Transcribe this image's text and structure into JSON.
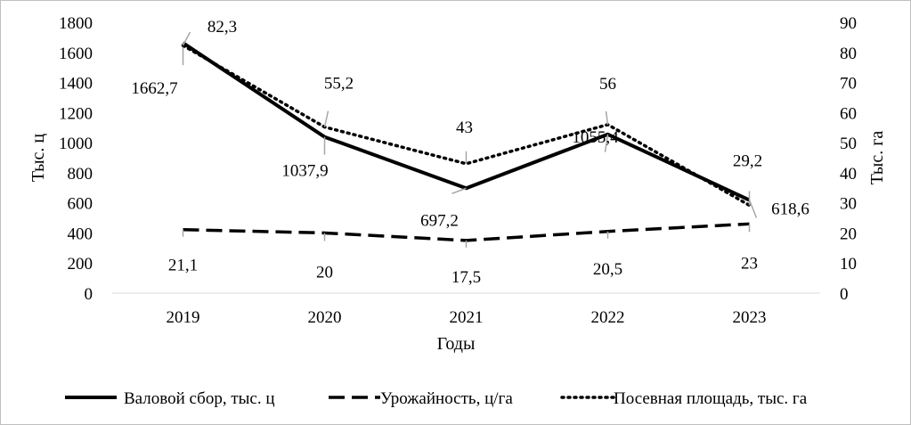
{
  "chart_data": {
    "type": "line",
    "categories": [
      "2019",
      "2020",
      "2021",
      "2022",
      "2023"
    ],
    "xlabel": "Годы",
    "ylabel_left": "Тыс. ц",
    "ylabel_right": "Тыс. га",
    "ylim_left": [
      0,
      1800
    ],
    "ylim_right": [
      0,
      90
    ],
    "yticks_left": [
      "0",
      "200",
      "400",
      "600",
      "800",
      "1000",
      "1200",
      "1400",
      "1600",
      "1800"
    ],
    "yticks_right": [
      "0",
      "10",
      "20",
      "30",
      "40",
      "50",
      "60",
      "70",
      "80",
      "90"
    ],
    "grid": false,
    "legend_position": "bottom",
    "series": [
      {
        "name": "Валовой сбор, тыс. ц",
        "axis": "left",
        "style": "solid",
        "values": [
          1662.7,
          1037.9,
          697.2,
          1055.4,
          618.6
        ],
        "labels": [
          "1662,7",
          "1037,9",
          "697,2",
          "1055,4",
          "618,6"
        ]
      },
      {
        "name": "Урожайность, ц/га",
        "axis": "right",
        "style": "dashed",
        "values": [
          21.1,
          20,
          17.5,
          20.5,
          23
        ],
        "labels": [
          "21,1",
          "20",
          "17,5",
          "20,5",
          "23"
        ]
      },
      {
        "name": "Посевная площадь, тыс. га",
        "axis": "right",
        "style": "dotted",
        "values": [
          82.3,
          55.2,
          43,
          56,
          29.2
        ],
        "labels": [
          "82,3",
          "55,2",
          "43",
          "56",
          "29,2"
        ]
      }
    ],
    "colors": {
      "line": "#000000",
      "leader": "#a6a6a6",
      "axis": "#d9d9d9"
    }
  }
}
